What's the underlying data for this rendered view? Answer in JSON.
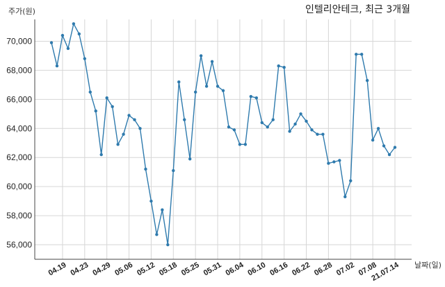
{
  "chart_data": {
    "type": "line",
    "title": "인텔리안테크, 최근 3개월",
    "ylabel": "주가(원)",
    "xlabel": "날짜(일)",
    "ylim": [
      55000,
      71500
    ],
    "yticks": [
      56000,
      58000,
      60000,
      62000,
      64000,
      66000,
      68000,
      70000
    ],
    "ytick_labels": [
      "56,000",
      "58,000",
      "60,000",
      "62,000",
      "64,000",
      "66,000",
      "68,000",
      "70,000"
    ],
    "xtick_labels": [
      "04.19",
      "04.23",
      "04.29",
      "05.06",
      "05.12",
      "05.18",
      "05.25",
      "05.31",
      "06.04",
      "06.10",
      "06.16",
      "06.22",
      "06.28",
      "07.02",
      "07.08",
      "21.07.14"
    ],
    "xtick_indices": [
      2,
      6,
      10,
      14,
      18,
      22,
      26,
      30,
      34,
      38,
      42,
      46,
      50,
      54,
      58,
      62
    ],
    "grid": true,
    "colors": {
      "line": "#2e7aad",
      "marker": "#2e7aad"
    },
    "values": [
      69900,
      68300,
      70400,
      69500,
      71200,
      70500,
      68800,
      66500,
      65200,
      62200,
      66100,
      65500,
      62900,
      63600,
      64900,
      64600,
      64000,
      61200,
      59000,
      56700,
      58400,
      56000,
      61100,
      67200,
      64600,
      61900,
      66500,
      69000,
      66900,
      68600,
      66900,
      66600,
      64100,
      63900,
      62900,
      62900,
      66200,
      66100,
      64400,
      64100,
      64600,
      68300,
      68200,
      63800,
      64300,
      65000,
      64500,
      63900,
      63600,
      63600,
      61600,
      61700,
      61800,
      59300,
      60400,
      69100,
      69100,
      67300,
      63200,
      64000,
      62800,
      62200,
      62700
    ]
  }
}
